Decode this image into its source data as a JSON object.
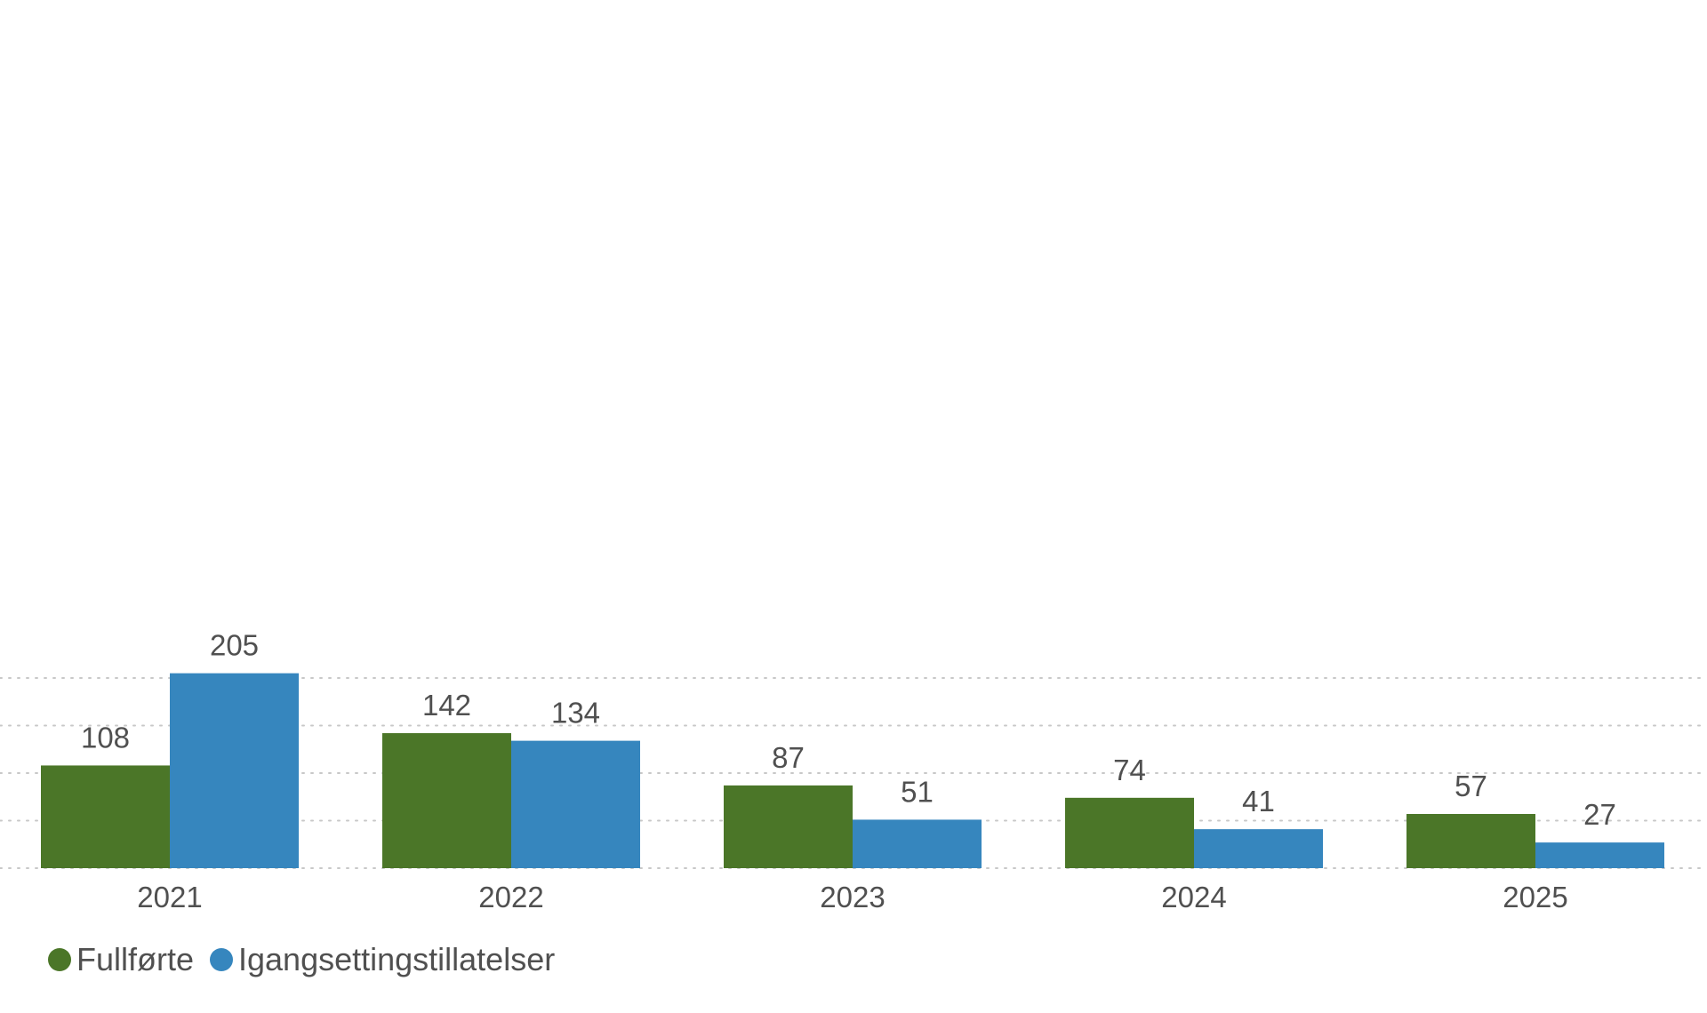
{
  "colors": {
    "series_1": "#4b7628",
    "series_2": "#3686be",
    "grid": "#c8c8c8",
    "text": "#505050"
  },
  "legend": {
    "items": [
      {
        "label": "Fullførte",
        "icon": "circle-marker"
      },
      {
        "label": "Igangsettingstillatelser",
        "icon": "circle-marker"
      }
    ]
  },
  "chart_data": {
    "type": "bar",
    "title": "",
    "xlabel": "",
    "ylabel": "",
    "categories": [
      "2021",
      "2022",
      "2023",
      "2024",
      "2025"
    ],
    "series": [
      {
        "name": "Fullførte",
        "values": [
          108,
          142,
          87,
          74,
          57
        ]
      },
      {
        "name": "Igangsettingstillatelser",
        "values": [
          205,
          134,
          51,
          41,
          27
        ]
      }
    ],
    "ylim": [
      0,
      200
    ],
    "y_gridlines": [
      0,
      50,
      100,
      150,
      200
    ],
    "y_tick_labels_shown": false,
    "grid": true,
    "data_labels": true,
    "legend_position": "bottom-left"
  }
}
